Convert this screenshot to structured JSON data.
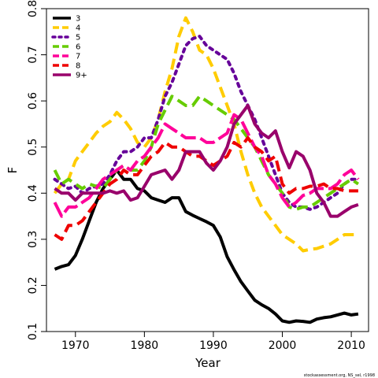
{
  "chart_data": {
    "type": "line",
    "xlabel": "Year",
    "ylabel": "F",
    "xlim": [
      1965.8,
      2012.5
    ],
    "ylim": [
      0.1,
      0.8
    ],
    "xticks": [
      1970,
      1980,
      1990,
      2000,
      2010
    ],
    "yticks": [
      0.1,
      0.2,
      0.3,
      0.4,
      0.5,
      0.6,
      0.7,
      0.8
    ],
    "legend_position": "top-left",
    "credit": "stockassessment.org, NS_sel, r1998",
    "x": [
      1967,
      1968,
      1969,
      1970,
      1971,
      1972,
      1973,
      1974,
      1975,
      1976,
      1977,
      1978,
      1979,
      1980,
      1981,
      1982,
      1983,
      1984,
      1985,
      1986,
      1987,
      1988,
      1989,
      1990,
      1991,
      1992,
      1993,
      1994,
      1995,
      1996,
      1997,
      1998,
      1999,
      2000,
      2001,
      2002,
      2003,
      2004,
      2005,
      2006,
      2007,
      2008,
      2009,
      2010,
      2011
    ],
    "series": [
      {
        "name": "3",
        "color": "#000000",
        "dash": "solid",
        "values": [
          0.235,
          0.241,
          0.245,
          0.265,
          0.3,
          0.34,
          0.38,
          0.41,
          0.43,
          0.45,
          0.43,
          0.43,
          0.41,
          0.405,
          0.39,
          0.385,
          0.38,
          0.39,
          0.39,
          0.36,
          0.352,
          0.345,
          0.338,
          0.33,
          0.305,
          0.262,
          0.234,
          0.208,
          0.188,
          0.168,
          0.158,
          0.15,
          0.138,
          0.123,
          0.12,
          0.123,
          0.122,
          0.12,
          0.127,
          0.13,
          0.132,
          0.136,
          0.14,
          0.136,
          0.138
        ]
      },
      {
        "name": "4",
        "color": "#ffcc00",
        "dash": "dashed",
        "values": [
          0.4,
          0.42,
          0.43,
          0.47,
          0.49,
          0.51,
          0.53,
          0.545,
          0.555,
          0.575,
          0.56,
          0.54,
          0.51,
          0.5,
          0.52,
          0.56,
          0.62,
          0.67,
          0.74,
          0.78,
          0.75,
          0.71,
          0.7,
          0.67,
          0.63,
          0.59,
          0.55,
          0.49,
          0.44,
          0.4,
          0.37,
          0.35,
          0.33,
          0.31,
          0.3,
          0.29,
          0.275,
          0.278,
          0.28,
          0.285,
          0.29,
          0.3,
          0.31,
          0.31,
          0.31
        ]
      },
      {
        "name": "5",
        "color": "#660099",
        "dash": "dotted",
        "values": [
          0.43,
          0.42,
          0.41,
          0.415,
          0.4,
          0.41,
          0.415,
          0.42,
          0.44,
          0.47,
          0.49,
          0.49,
          0.5,
          0.52,
          0.52,
          0.56,
          0.61,
          0.64,
          0.68,
          0.72,
          0.735,
          0.74,
          0.72,
          0.71,
          0.7,
          0.69,
          0.66,
          0.62,
          0.59,
          0.56,
          0.52,
          0.48,
          0.44,
          0.4,
          0.38,
          0.37,
          0.37,
          0.365,
          0.37,
          0.38,
          0.39,
          0.4,
          0.42,
          0.43,
          0.43
        ]
      },
      {
        "name": "6",
        "color": "#66cc00",
        "dash": "dashed",
        "values": [
          0.45,
          0.42,
          0.43,
          0.42,
          0.41,
          0.42,
          0.415,
          0.41,
          0.43,
          0.45,
          0.46,
          0.45,
          0.45,
          0.47,
          0.5,
          0.55,
          0.58,
          0.61,
          0.6,
          0.59,
          0.59,
          0.61,
          0.6,
          0.59,
          0.58,
          0.57,
          0.56,
          0.54,
          0.52,
          0.5,
          0.47,
          0.44,
          0.42,
          0.4,
          0.37,
          0.365,
          0.37,
          0.37,
          0.38,
          0.39,
          0.4,
          0.41,
          0.42,
          0.43,
          0.42
        ]
      },
      {
        "name": "7",
        "color": "#ff0099",
        "dash": "long-dashed",
        "values": [
          0.38,
          0.35,
          0.37,
          0.37,
          0.38,
          0.39,
          0.41,
          0.43,
          0.44,
          0.45,
          0.46,
          0.45,
          0.47,
          0.48,
          0.5,
          0.52,
          0.55,
          0.54,
          0.53,
          0.52,
          0.52,
          0.52,
          0.51,
          0.51,
          0.52,
          0.53,
          0.57,
          0.56,
          0.53,
          0.5,
          0.48,
          0.44,
          0.42,
          0.39,
          0.37,
          0.38,
          0.395,
          0.4,
          0.41,
          0.41,
          0.41,
          0.42,
          0.44,
          0.45,
          0.43
        ]
      },
      {
        "name": "8",
        "color": "#ee0000",
        "dash": "dashed",
        "values": [
          0.31,
          0.3,
          0.33,
          0.33,
          0.34,
          0.36,
          0.38,
          0.4,
          0.42,
          0.43,
          0.45,
          0.44,
          0.44,
          0.46,
          0.48,
          0.49,
          0.51,
          0.5,
          0.5,
          0.49,
          0.48,
          0.48,
          0.47,
          0.46,
          0.47,
          0.48,
          0.51,
          0.5,
          0.52,
          0.5,
          0.49,
          0.47,
          0.48,
          0.42,
          0.4,
          0.41,
          0.41,
          0.415,
          0.415,
          0.42,
          0.41,
          0.41,
          0.405,
          0.405,
          0.405
        ]
      },
      {
        "name": "9+",
        "color": "#99006b",
        "dash": "solid",
        "values": [
          0.41,
          0.4,
          0.4,
          0.385,
          0.4,
          0.4,
          0.4,
          0.4,
          0.405,
          0.4,
          0.405,
          0.385,
          0.39,
          0.415,
          0.44,
          0.445,
          0.45,
          0.43,
          0.45,
          0.49,
          0.49,
          0.49,
          0.465,
          0.45,
          0.47,
          0.5,
          0.55,
          0.57,
          0.59,
          0.55,
          0.53,
          0.52,
          0.535,
          0.49,
          0.455,
          0.49,
          0.48,
          0.45,
          0.4,
          0.38,
          0.35,
          0.35,
          0.36,
          0.37,
          0.375
        ]
      }
    ]
  }
}
